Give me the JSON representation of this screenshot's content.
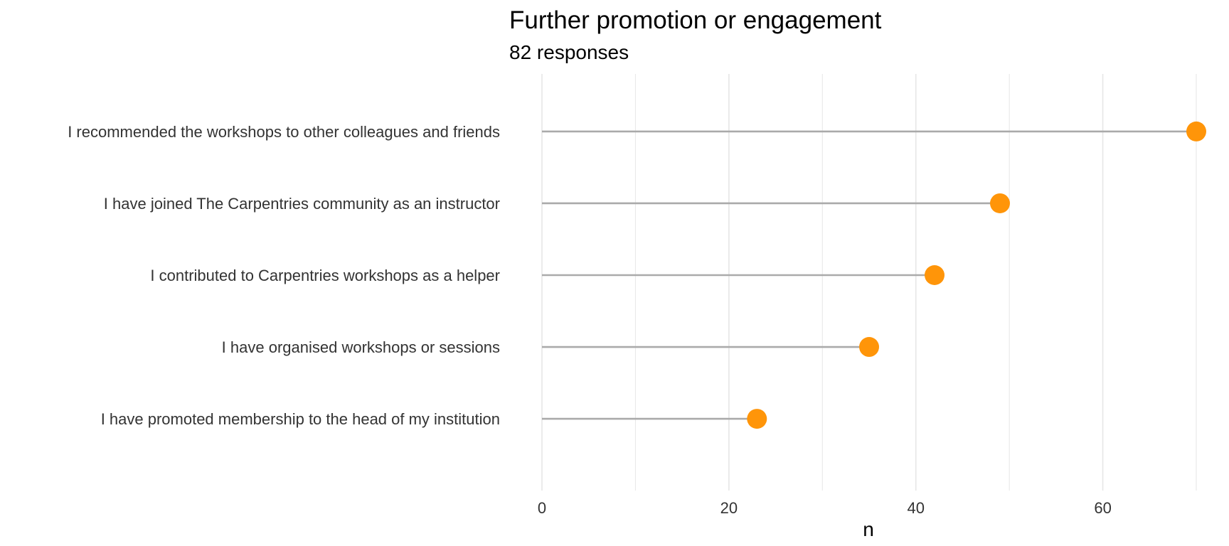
{
  "chart_data": {
    "type": "lollipop",
    "title": "Further promotion or engagement",
    "subtitle": "82 responses",
    "xlabel": "n",
    "ylabel": "",
    "xlim": [
      0,
      70
    ],
    "x_ticks": [
      0,
      20,
      40,
      60
    ],
    "x_tick_labels": [
      "0",
      "20",
      "40",
      "60"
    ],
    "grid": true,
    "legend": "none",
    "categories": [
      "I recommended the workshops to other colleagues and friends",
      "I have joined The Carpentries community as an instructor",
      "I contributed to Carpentries workshops as a helper",
      "I have organised workshops or sessions",
      "I have promoted membership to the head of my institution"
    ],
    "values": [
      70,
      49,
      42,
      35,
      23
    ],
    "colors": {
      "point": "#FF9509",
      "stem": "#AAAAAA",
      "grid": "#E6E6E6"
    }
  }
}
